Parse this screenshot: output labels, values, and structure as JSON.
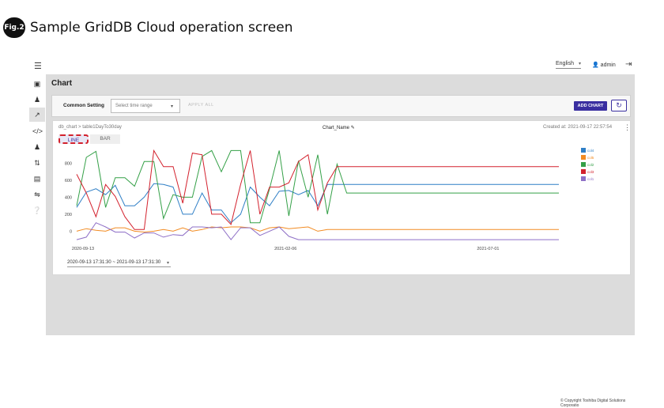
{
  "figure": {
    "badge": "Fig.2",
    "title": "Sample GridDB Cloud operation screen"
  },
  "topbar": {
    "language": "English",
    "user": "admin"
  },
  "sidebar": {
    "icons": [
      "database-icon",
      "users-icon",
      "chart-icon",
      "code-icon",
      "user-manage-icon",
      "transfer-icon",
      "document-icon",
      "settings-icon",
      "help-icon"
    ],
    "active": "chart-icon"
  },
  "page": {
    "title": "Chart"
  },
  "common_setting": {
    "label": "Common Setting",
    "time_range_placeholder": "Select time range",
    "apply_all_label": "APPLY ALL",
    "add_chart_label": "ADD CHART"
  },
  "chart_card": {
    "breadcrumb_db": "db_chart",
    "breadcrumb_sep": ">",
    "breadcrumb_table": "table1DayTo30day",
    "chart_name": "Chart_Name",
    "created_at": "Created at: 2021-09-17 22:57:54",
    "tabs": [
      {
        "label": "LINE",
        "active": true
      },
      {
        "label": "BAR",
        "active": false
      }
    ],
    "date_range": "2020-09-13 17:31:30 ~ 2021-09-13 17:31:30"
  },
  "chart_data": {
    "type": "line",
    "y_ticks": [
      "0",
      "200",
      "400",
      "600",
      "800"
    ],
    "ylim": [
      -80,
      1000
    ],
    "x_ticks": [
      "2020-09-13",
      "2021-02-06",
      "2021-07-01"
    ],
    "xlim": [
      0,
      50
    ],
    "legend_position": "right",
    "series": [
      {
        "name": "col4",
        "color": "#2f7fc6",
        "values": [
          280,
          460,
          500,
          430,
          540,
          300,
          300,
          400,
          560,
          550,
          520,
          200,
          200,
          450,
          250,
          250,
          100,
          200,
          520,
          400,
          300,
          470,
          480,
          430,
          480,
          300,
          550,
          550,
          550,
          550,
          550,
          550,
          550,
          550,
          550,
          550,
          550,
          550,
          550,
          550,
          550,
          550,
          550,
          550,
          550,
          550,
          550,
          550,
          550,
          550,
          550
        ]
      },
      {
        "name": "col5",
        "color": "#f28b22",
        "values": [
          0,
          30,
          10,
          0,
          40,
          40,
          0,
          -10,
          0,
          20,
          0,
          40,
          0,
          20,
          50,
          40,
          50,
          50,
          40,
          0,
          40,
          50,
          30,
          40,
          50,
          0,
          20,
          20,
          20,
          20,
          20,
          20,
          20,
          20,
          20,
          20,
          20,
          20,
          20,
          20,
          20,
          20,
          20,
          20,
          20,
          20,
          20,
          20,
          20,
          20,
          20
        ]
      },
      {
        "name": "col2",
        "color": "#34a047",
        "values": [
          300,
          870,
          940,
          280,
          630,
          630,
          530,
          820,
          820,
          150,
          430,
          400,
          400,
          880,
          950,
          700,
          950,
          950,
          100,
          100,
          500,
          950,
          180,
          830,
          400,
          900,
          200,
          790,
          450,
          450,
          450,
          450,
          450,
          450,
          450,
          450,
          450,
          450,
          450,
          450,
          450,
          450,
          450,
          450,
          450,
          450,
          450,
          450,
          450,
          450,
          450
        ]
      },
      {
        "name": "col3",
        "color": "#d3212d",
        "values": [
          670,
          450,
          170,
          550,
          410,
          170,
          20,
          20,
          950,
          760,
          760,
          330,
          920,
          900,
          200,
          200,
          80,
          550,
          950,
          200,
          520,
          520,
          570,
          820,
          900,
          250,
          570,
          760,
          760,
          760,
          760,
          760,
          760,
          760,
          760,
          760,
          760,
          760,
          760,
          760,
          760,
          760,
          760,
          760,
          760,
          760,
          760,
          760,
          760,
          760,
          760
        ]
      },
      {
        "name": "col1",
        "color": "#8e6fc6",
        "values": [
          -100,
          -70,
          100,
          50,
          -10,
          -10,
          -80,
          -20,
          -20,
          -70,
          -40,
          -50,
          50,
          50,
          40,
          50,
          -100,
          40,
          40,
          -50,
          0,
          50,
          -60,
          -100,
          -100,
          -100,
          -100,
          -100,
          -100,
          -100,
          -100,
          -100,
          -100,
          -100,
          -100,
          -100,
          -100,
          -100,
          -100,
          -100,
          -100,
          -100,
          -100,
          -100,
          -100,
          -100,
          -100,
          -100,
          -100,
          -100,
          -100
        ]
      }
    ]
  },
  "footer": {
    "copyright": "© Copyright Toshiba Digital Solutions Corporatio"
  }
}
